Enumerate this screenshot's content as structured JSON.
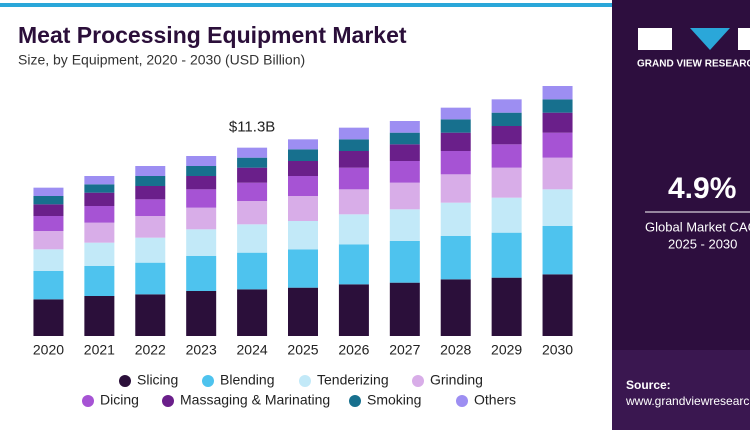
{
  "chart_data": {
    "type": "stacked-bar",
    "title": "Meat Processing Equipment Market",
    "subtitle": "Size, by Equipment, 2020 - 2030 (USD Billion)",
    "categories": [
      "2020",
      "2021",
      "2022",
      "2023",
      "2024",
      "2025",
      "2026",
      "2027",
      "2028",
      "2029",
      "2030"
    ],
    "series": [
      {
        "name": "Slicing",
        "color": "#2b0f3a",
        "values": [
          2.2,
          2.4,
          2.5,
          2.7,
          2.8,
          2.9,
          3.1,
          3.2,
          3.4,
          3.5,
          3.7
        ]
      },
      {
        "name": "Blending",
        "color": "#4ec3ee",
        "values": [
          1.7,
          1.8,
          1.9,
          2.1,
          2.2,
          2.3,
          2.4,
          2.5,
          2.6,
          2.7,
          2.9
        ]
      },
      {
        "name": "Tenderizing",
        "color": "#c2e9f8",
        "values": [
          1.3,
          1.4,
          1.5,
          1.6,
          1.7,
          1.7,
          1.8,
          1.9,
          2.0,
          2.1,
          2.2
        ]
      },
      {
        "name": "Grinding",
        "color": "#d8ade8",
        "values": [
          1.1,
          1.2,
          1.3,
          1.3,
          1.4,
          1.5,
          1.5,
          1.6,
          1.7,
          1.8,
          1.9
        ]
      },
      {
        "name": "Dicing",
        "color": "#a653d4",
        "values": [
          0.9,
          1.0,
          1.0,
          1.1,
          1.1,
          1.2,
          1.3,
          1.3,
          1.4,
          1.4,
          1.5
        ]
      },
      {
        "name": "Massaging & Marinating",
        "color": "#6a1f8a",
        "values": [
          0.7,
          0.8,
          0.8,
          0.8,
          0.9,
          0.9,
          1.0,
          1.0,
          1.1,
          1.1,
          1.2
        ]
      },
      {
        "name": "Smoking",
        "color": "#17708e",
        "values": [
          0.5,
          0.5,
          0.6,
          0.6,
          0.6,
          0.7,
          0.7,
          0.7,
          0.8,
          0.8,
          0.8
        ]
      },
      {
        "name": "Others",
        "color": "#9d8ef2",
        "values": [
          0.5,
          0.5,
          0.6,
          0.6,
          0.6,
          0.6,
          0.7,
          0.7,
          0.7,
          0.8,
          0.8
        ]
      }
    ],
    "ylim": [
      0,
      15.6
    ],
    "annotation": {
      "label": "$11.3B",
      "category": "2024"
    }
  },
  "side_panel": {
    "brand": "GRAND VIEW RESEARCH",
    "cagr": "4.9%",
    "cagr_label": "Global Market CAGR",
    "period": "2025 - 2030",
    "source_label": "Source:",
    "source": "www.grandviewresearch.com"
  }
}
